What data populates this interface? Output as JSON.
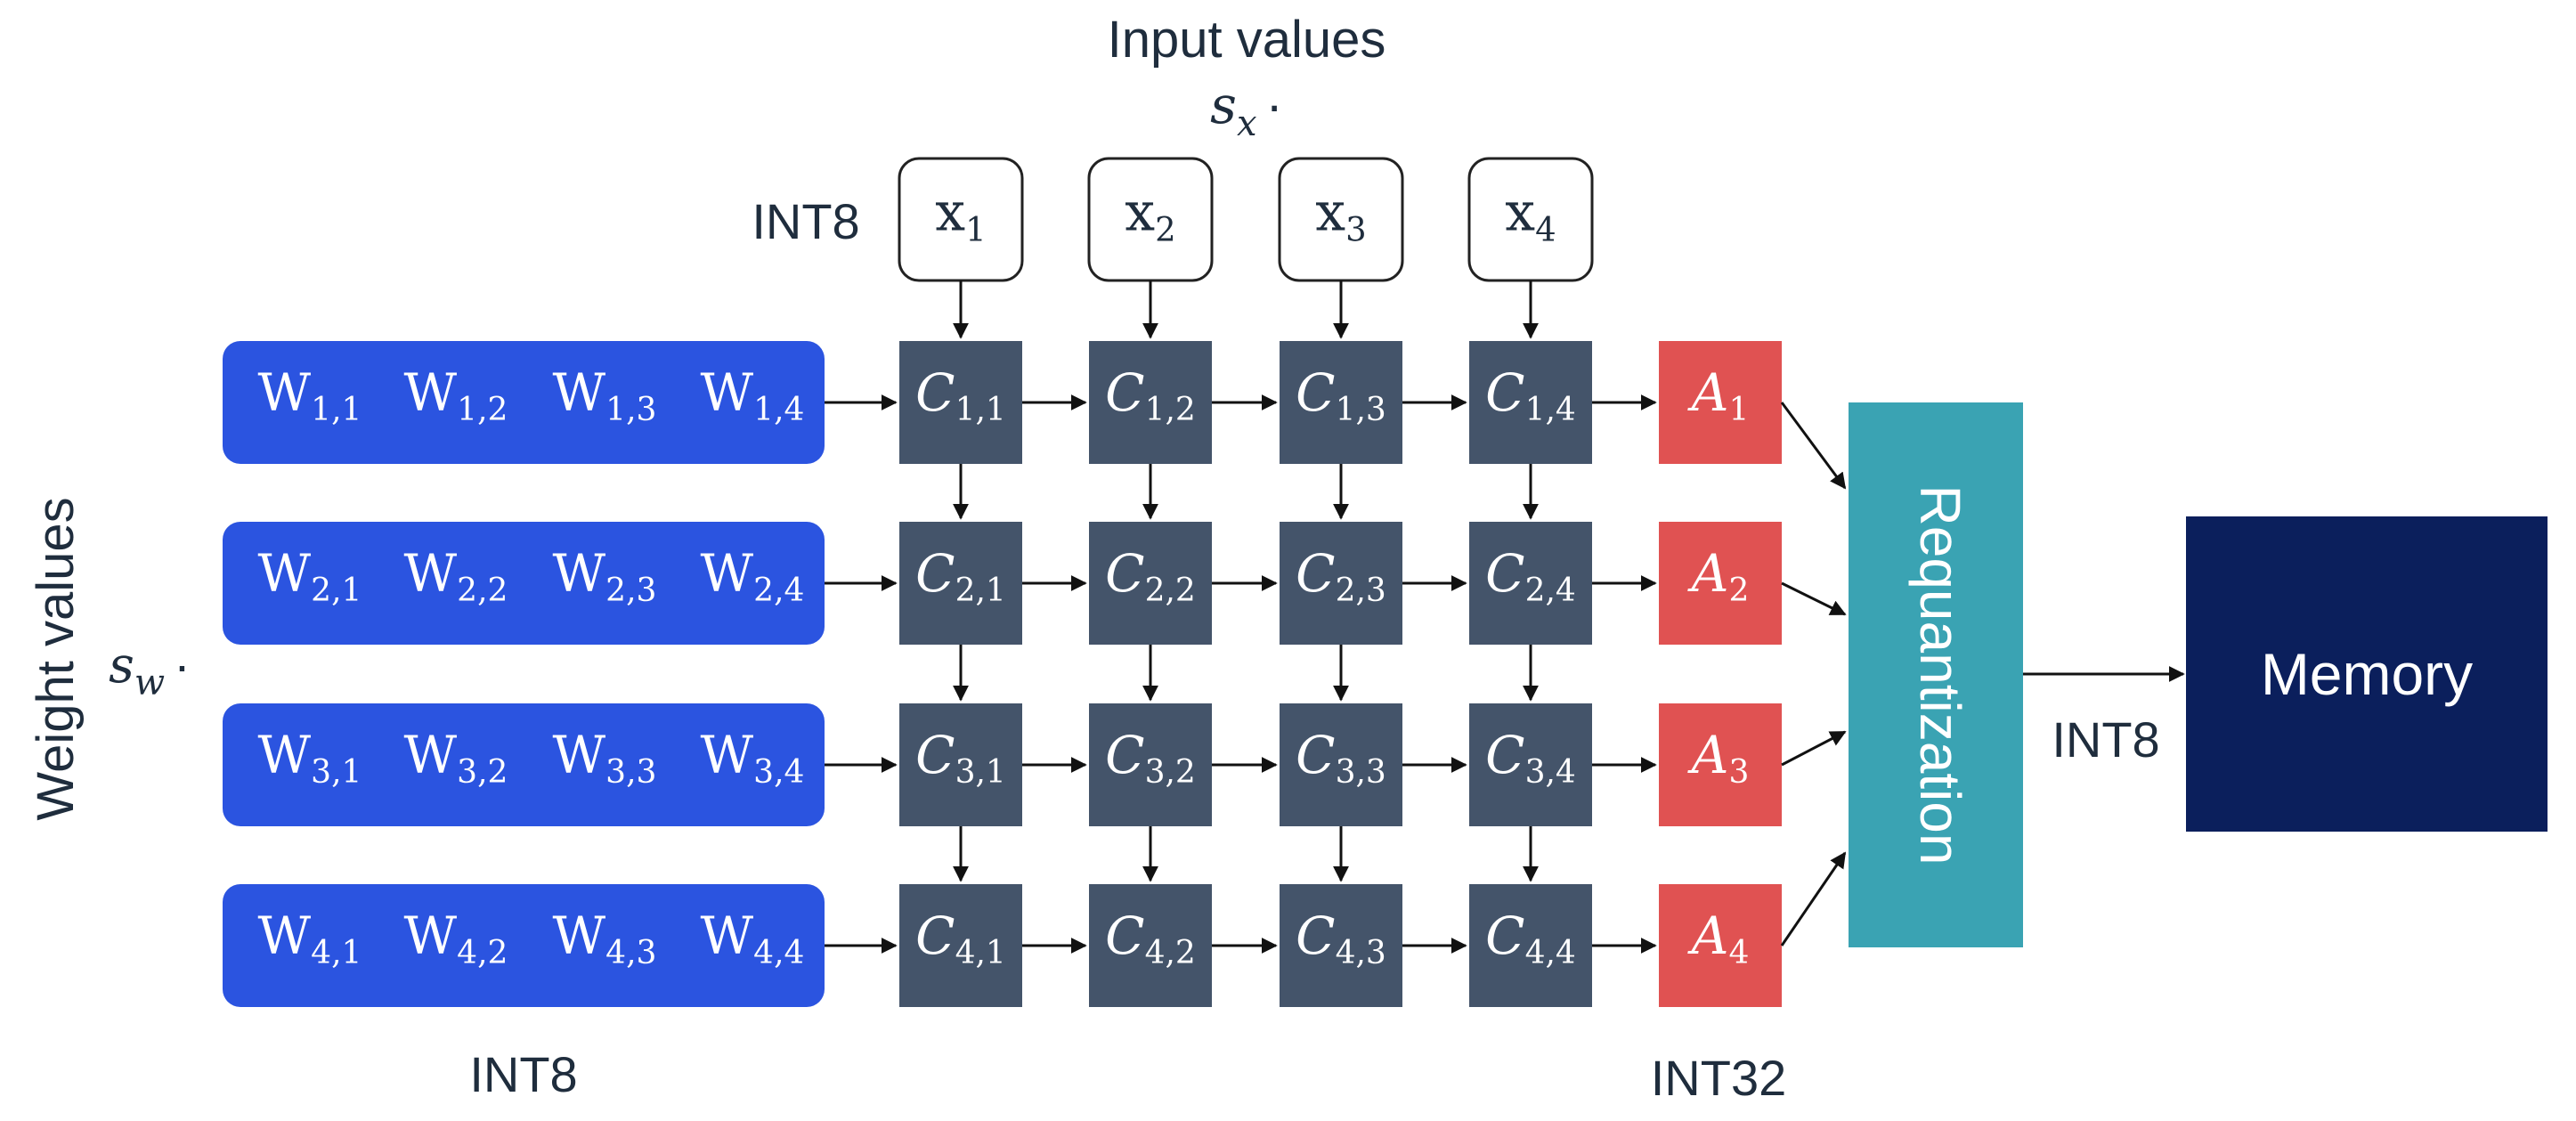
{
  "labels": {
    "input_title": "Input values",
    "input_scale_base": "s",
    "input_scale_sub": "x",
    "input_scale_dot": "·",
    "input_type": "INT8",
    "weight_title": "Weight values",
    "weight_scale_base": "s",
    "weight_scale_sub": "w",
    "weight_scale_dot": "·",
    "weight_type": "INT8",
    "acc_type": "INT32",
    "requant": "Requantization",
    "output_type": "INT8",
    "memory": "Memory"
  },
  "inputs": [
    {
      "base": "x",
      "sub": "1"
    },
    {
      "base": "x",
      "sub": "2"
    },
    {
      "base": "x",
      "sub": "3"
    },
    {
      "base": "x",
      "sub": "4"
    }
  ],
  "weights": [
    [
      {
        "base": "W",
        "sub": "1,1"
      },
      {
        "base": "W",
        "sub": "1,2"
      },
      {
        "base": "W",
        "sub": "1,3"
      },
      {
        "base": "W",
        "sub": "1,4"
      }
    ],
    [
      {
        "base": "W",
        "sub": "2,1"
      },
      {
        "base": "W",
        "sub": "2,2"
      },
      {
        "base": "W",
        "sub": "2,3"
      },
      {
        "base": "W",
        "sub": "2,4"
      }
    ],
    [
      {
        "base": "W",
        "sub": "3,1"
      },
      {
        "base": "W",
        "sub": "3,2"
      },
      {
        "base": "W",
        "sub": "3,3"
      },
      {
        "base": "W",
        "sub": "3,4"
      }
    ],
    [
      {
        "base": "W",
        "sub": "4,1"
      },
      {
        "base": "W",
        "sub": "4,2"
      },
      {
        "base": "W",
        "sub": "4,3"
      },
      {
        "base": "W",
        "sub": "4,4"
      }
    ]
  ],
  "cells": [
    [
      {
        "base": "C",
        "sub": "1,1"
      },
      {
        "base": "C",
        "sub": "1,2"
      },
      {
        "base": "C",
        "sub": "1,3"
      },
      {
        "base": "C",
        "sub": "1,4"
      }
    ],
    [
      {
        "base": "C",
        "sub": "2,1"
      },
      {
        "base": "C",
        "sub": "2,2"
      },
      {
        "base": "C",
        "sub": "2,3"
      },
      {
        "base": "C",
        "sub": "2,4"
      }
    ],
    [
      {
        "base": "C",
        "sub": "3,1"
      },
      {
        "base": "C",
        "sub": "3,2"
      },
      {
        "base": "C",
        "sub": "3,3"
      },
      {
        "base": "C",
        "sub": "3,4"
      }
    ],
    [
      {
        "base": "C",
        "sub": "4,1"
      },
      {
        "base": "C",
        "sub": "4,2"
      },
      {
        "base": "C",
        "sub": "4,3"
      },
      {
        "base": "C",
        "sub": "4,4"
      }
    ]
  ],
  "accumulators": [
    {
      "base": "A",
      "sub": "1"
    },
    {
      "base": "A",
      "sub": "2"
    },
    {
      "base": "A",
      "sub": "3"
    },
    {
      "base": "A",
      "sub": "4"
    }
  ],
  "colors": {
    "weight_row": "#2b54e0",
    "cell": "#44546a",
    "accumulator": "#e05252",
    "requant": "#3aa3b3",
    "memory": "#0b1f5c",
    "text_dark": "#1f2d3d",
    "arrow": "#111111"
  }
}
